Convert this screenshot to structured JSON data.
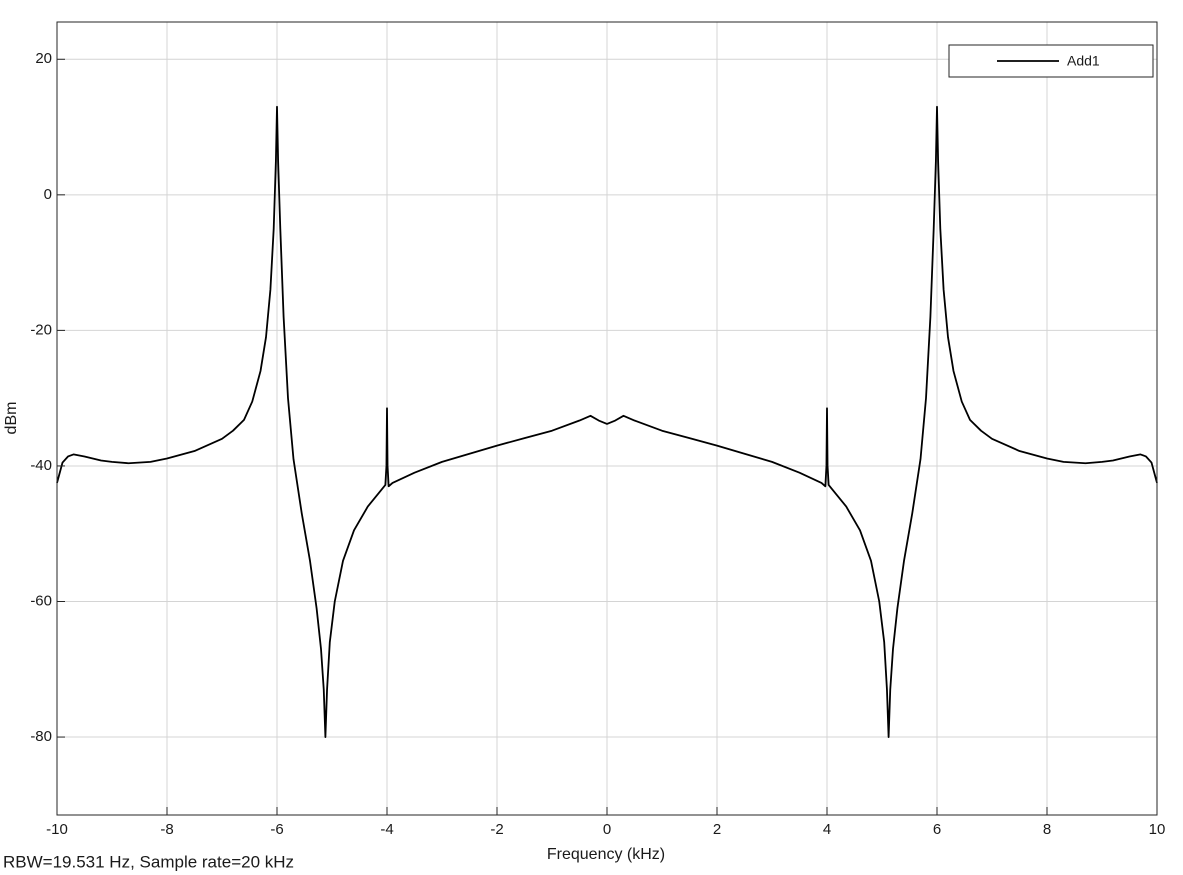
{
  "chart_data": {
    "type": "line",
    "xlabel": "Frequency (kHz)",
    "ylabel": "dBm",
    "annotation": "RBW=19.531 Hz, Sample rate=20 kHz",
    "xlim": [
      -10,
      10
    ],
    "ylim": [
      -91.5,
      25.5
    ],
    "xticks": [
      -10,
      -8,
      -6,
      -4,
      -2,
      0,
      2,
      4,
      6,
      8,
      10
    ],
    "yticks": [
      -80,
      -60,
      -40,
      -20,
      0,
      20
    ],
    "grid": true,
    "legend": "upper right",
    "x": [
      -10,
      -9.95,
      -9.9,
      -9.8,
      -9.7,
      -9.5,
      -9.2,
      -9,
      -8.7,
      -8.3,
      -8,
      -7.5,
      -7,
      -6.8,
      -6.6,
      -6.45,
      -6.3,
      -6.2,
      -6.12,
      -6.06,
      -6.02,
      -6,
      -5.98,
      -5.94,
      -5.88,
      -5.8,
      -5.7,
      -5.55,
      -5.4,
      -5.28,
      -5.2,
      -5.15,
      -5.12,
      -5.09,
      -5.04,
      -4.95,
      -4.8,
      -4.6,
      -4.35,
      -4.1,
      -4.03,
      -4.01,
      -4,
      -3.99,
      -3.97,
      -3.9,
      -3.5,
      -3,
      -2.5,
      -2,
      -1.5,
      -1,
      -0.5,
      -0.3,
      -0.15,
      0,
      0.15,
      0.3,
      0.5,
      1,
      1.5,
      2,
      2.5,
      3,
      3.5,
      3.9,
      3.97,
      3.99,
      4,
      4.01,
      4.03,
      4.1,
      4.35,
      4.6,
      4.8,
      4.95,
      5.04,
      5.09,
      5.12,
      5.15,
      5.2,
      5.28,
      5.4,
      5.55,
      5.7,
      5.8,
      5.88,
      5.94,
      5.98,
      6,
      6.02,
      6.06,
      6.12,
      6.2,
      6.3,
      6.45,
      6.6,
      6.8,
      7,
      7.5,
      8,
      8.3,
      8.7,
      9,
      9.2,
      9.5,
      9.7,
      9.8,
      9.9,
      9.95,
      10
    ],
    "series": [
      {
        "name": "Add1",
        "color": "#000000",
        "values": [
          -42.5,
          -41,
          -39.5,
          -38.6,
          -38.3,
          -38.6,
          -39.2,
          -39.4,
          -39.6,
          -39.4,
          -38.9,
          -37.8,
          -36,
          -34.8,
          -33.2,
          -30.5,
          -26,
          -21,
          -14,
          -5,
          5,
          13,
          5,
          -5,
          -18,
          -30,
          -39,
          -47,
          -54,
          -61,
          -67,
          -73,
          -80,
          -73,
          -66,
          -60,
          -54,
          -49.5,
          -46,
          -43.5,
          -42.8,
          -40,
          -31.5,
          -40,
          -43,
          -42.5,
          -41,
          -39.4,
          -38.2,
          -37,
          -35.9,
          -34.8,
          -33.3,
          -32.6,
          -33.3,
          -33.8,
          -33.3,
          -32.6,
          -33.3,
          -34.8,
          -35.9,
          -37,
          -38.2,
          -39.4,
          -41,
          -42.5,
          -43,
          -40,
          -31.5,
          -40,
          -42.8,
          -43.5,
          -46,
          -49.5,
          -54,
          -60,
          -66,
          -73,
          -80,
          -73,
          -67,
          -61,
          -54,
          -47,
          -39,
          -30,
          -18,
          -5,
          5,
          13,
          5,
          -5,
          -14,
          -21,
          -26,
          -30.5,
          -33.2,
          -34.8,
          -36,
          -37.8,
          -38.9,
          -39.4,
          -39.6,
          -39.4,
          -39.2,
          -38.6,
          -38.3,
          -38.6,
          -39.5,
          -41,
          -42.5
        ]
      }
    ]
  }
}
